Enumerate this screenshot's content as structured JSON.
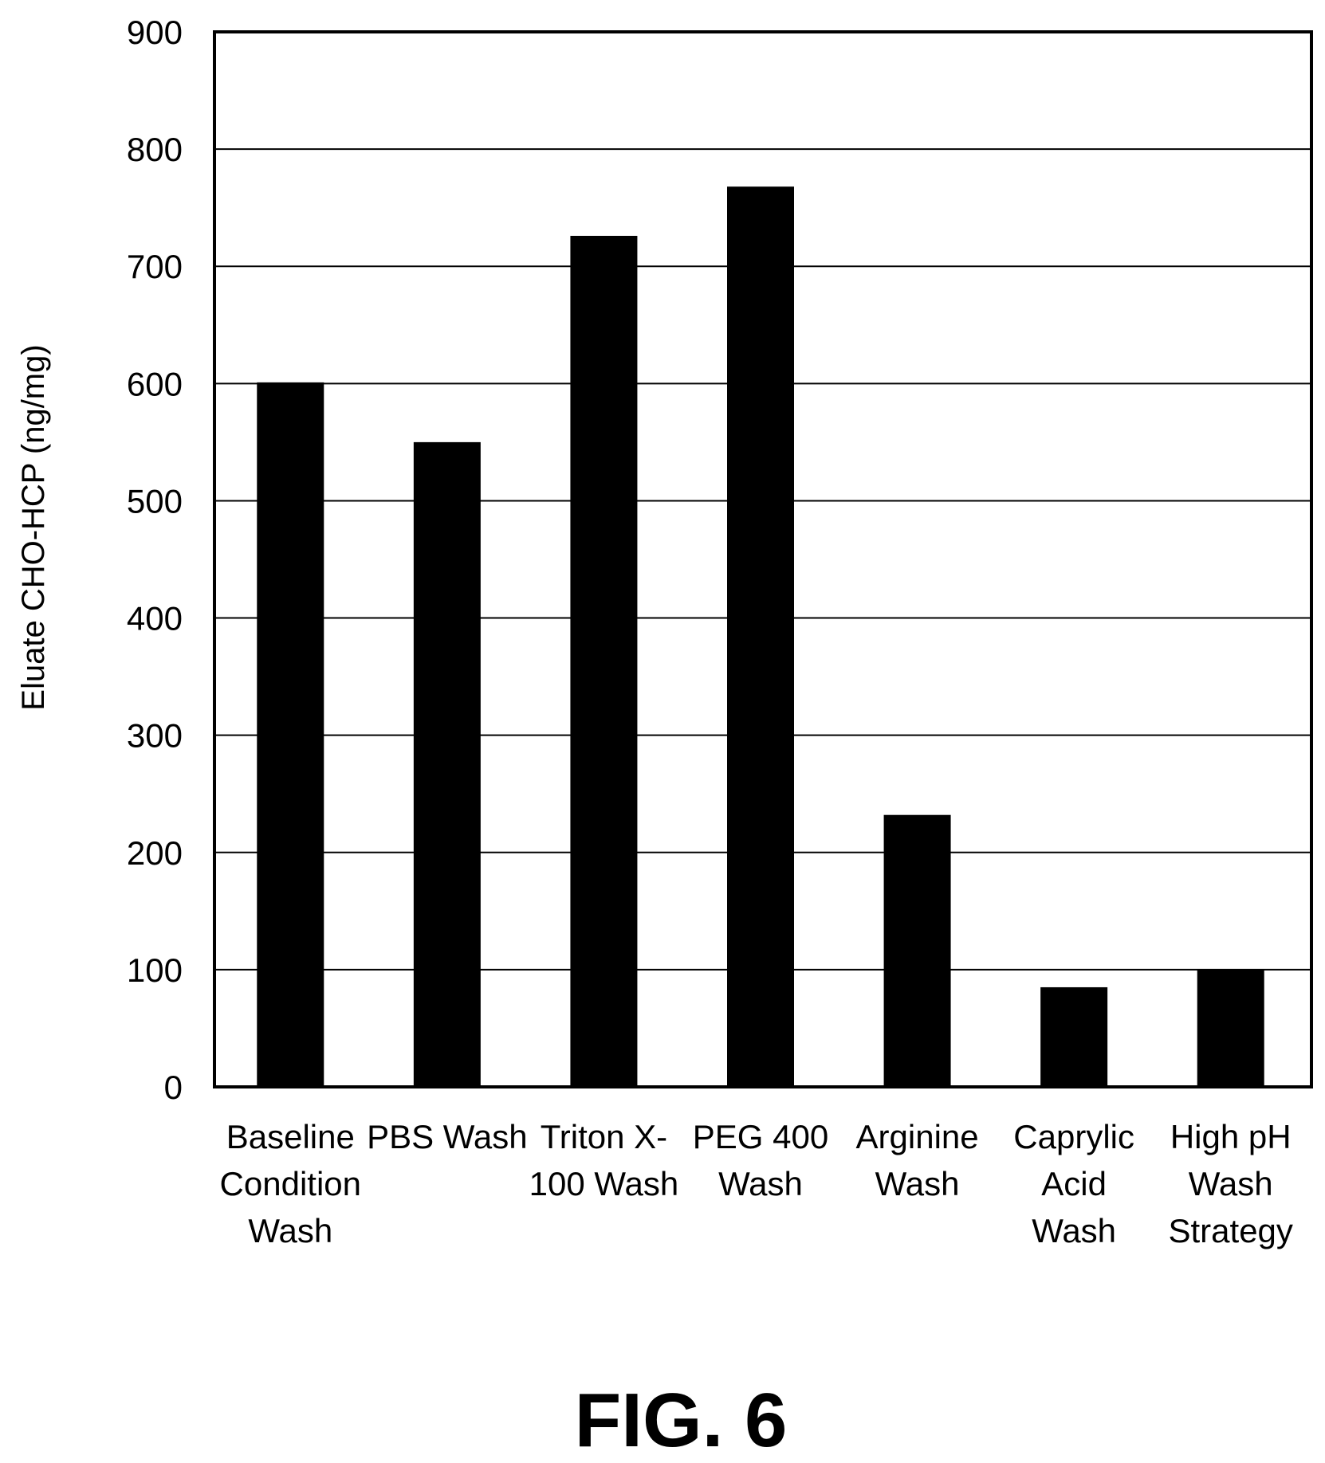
{
  "chart_data": {
    "type": "bar",
    "categories": [
      "Baseline Condition Wash",
      "PBS Wash",
      "Triton X-100 Wash",
      "PEG 400 Wash",
      "Arginine Wash",
      "Caprylic Acid Wash",
      "High pH Wash Strategy"
    ],
    "category_lines": [
      [
        "Baseline",
        "Condition",
        "Wash"
      ],
      [
        "PBS Wash"
      ],
      [
        "Triton X-",
        "100 Wash"
      ],
      [
        "PEG 400",
        "Wash"
      ],
      [
        "Arginine",
        "Wash"
      ],
      [
        "Caprylic",
        "Acid",
        "Wash"
      ],
      [
        "High pH",
        "Wash",
        "Strategy"
      ]
    ],
    "values": [
      601,
      550,
      726,
      768,
      232,
      85,
      100
    ],
    "ylabel": "Eluate CHO-HCP (ng/mg)",
    "xlabel": "",
    "ylim": [
      0,
      900
    ],
    "yticks": [
      0,
      100,
      200,
      300,
      400,
      500,
      600,
      700,
      800,
      900
    ],
    "grid": true,
    "bar_color": "#000000"
  },
  "caption": "FIG. 6"
}
